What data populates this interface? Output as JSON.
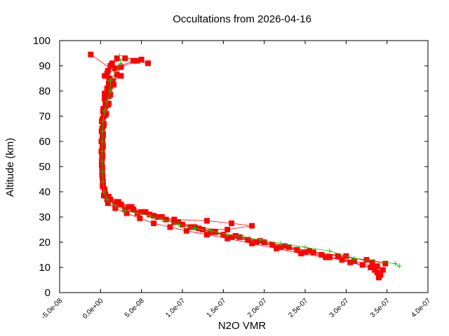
{
  "chart_data": {
    "type": "scatter",
    "title": "Occultations from 2026-04-16",
    "xlabel": "N2O VMR",
    "ylabel": "Altitude (km)",
    "xlim": [
      -5e-08,
      4e-07
    ],
    "ylim": [
      0,
      100
    ],
    "x_ticks": [
      -5e-08,
      0,
      5e-08,
      1e-07,
      1.5e-07,
      2e-07,
      2.5e-07,
      3e-07,
      3.5e-07,
      4e-07
    ],
    "x_tick_labels": [
      "-5.0e-08",
      "0.0e+00",
      "5.0e-08",
      "1.0e-07",
      "1.5e-07",
      "2.0e-07",
      "2.5e-07",
      "3.0e-07",
      "3.5e-07",
      "4.0e-07"
    ],
    "y_ticks": [
      0,
      10,
      20,
      30,
      40,
      50,
      60,
      70,
      80,
      90,
      100
    ],
    "y_tick_labels": [
      "0",
      "10",
      "20",
      "30",
      "40",
      "50",
      "60",
      "70",
      "80",
      "90",
      "100"
    ],
    "grid": false,
    "legend": "none",
    "colors": {
      "observed": "#ff0000",
      "mean": "#00cc00"
    },
    "series": [
      {
        "marker": "square",
        "color": "#ff0000",
        "profiles": [
          {
            "x": [
              3.4e-07,
              3.38e-07,
              3.3e-07,
              3.05e-07,
              2.8e-07,
              2.5e-07,
              2.2e-07,
              1.9e-07,
              1.6e-07,
              1.35e-07,
              1.1e-07,
              9e-08,
              7e-08,
              5e-08,
              3.5e-08,
              2e-08,
              1e-08,
              5e-09,
              3e-09,
              2e-09,
              1.5e-09,
              1e-09,
              1e-09,
              1.2e-09,
              1.5e-09,
              3e-09,
              6e-09,
              1e-08,
              1.5e-08,
              8e-09,
              1.2e-08,
              2e-08
            ],
            "y": [
              6,
              8,
              10,
              12,
              14,
              16,
              18,
              20,
              22,
              24,
              26,
              28,
              30,
              32,
              34,
              36,
              38,
              40,
              44,
              48,
              52,
              56,
              60,
              64,
              68,
              72,
              76,
              80,
              84,
              87,
              90,
              93
            ]
          },
          {
            "x": [
              3.42e-07,
              3.35e-07,
              3.2e-07,
              2.95e-07,
              2.7e-07,
              2.4e-07,
              2.1e-07,
              1.8e-07,
              1.5e-07,
              1.25e-07,
              1e-07,
              8e-08,
              6e-08,
              4e-08,
              2.5e-08,
              1.2e-08,
              6e-09,
              3e-09,
              2.5e-09,
              2e-09,
              2.5e-09,
              3e-09,
              2.5e-09,
              3e-09,
              4e-09,
              6e-09,
              1e-08,
              1.2e-08,
              5e-09,
              1.8e-08,
              4e-08,
              5.8e-08
            ],
            "y": [
              7,
              9,
              11,
              13,
              15,
              17,
              19,
              21,
              23,
              25,
              27,
              29,
              31,
              33,
              35,
              37,
              39,
              42,
              46,
              50,
              54,
              58,
              62,
              66,
              70,
              74,
              78,
              82,
              86,
              89,
              92,
              91
            ]
          },
          {
            "x": [
              3.45e-07,
              3.38e-07,
              3.32e-07,
              3e-07,
              2.6e-07,
              2.3e-07,
              2e-07,
              1.7e-07,
              1.4e-07,
              1.15e-07,
              9.5e-08,
              7.5e-08,
              5.5e-08,
              3.8e-08,
              2.2e-08,
              1e-08,
              5e-09,
              2.5e-09,
              2e-09,
              1.8e-09,
              2e-09,
              2.2e-09,
              2e-09,
              2.5e-09,
              3.5e-09,
              5e-09,
              8e-09,
              1.1e-08,
              9e-09,
              1.4e-08,
              3e-08,
              5e-08
            ],
            "y": [
              9,
              10.5,
              12,
              14.5,
              16,
              18,
              20,
              22,
              24,
              26,
              28,
              30,
              32,
              34,
              36,
              38,
              41,
              45,
              49,
              53,
              57,
              61,
              65,
              69,
              73,
              77,
              81,
              85,
              88,
              91,
              93,
              92.5
            ]
          },
          {
            "x": [
              3.48e-07,
              3.25e-07,
              2.9e-07,
              2.55e-07,
              2.25e-07,
              1.95e-07,
              1.65e-07,
              1.4e-07,
              1.2e-07,
              1.55e-07,
              1.85e-07,
              1.6e-07,
              1.3e-07,
              9e-08,
              6.5e-08,
              4.5e-08,
              3e-08,
              1.8e-08,
              8e-09,
              3e-09,
              2e-09,
              1.5e-09,
              2e-09,
              2.5e-09,
              3e-09,
              4e-09,
              7e-09,
              1e-08,
              5e-09,
              1e-08,
              2.5e-08,
              -1.2e-08
            ],
            "y": [
              11.5,
              13,
              14.5,
              16.5,
              18.5,
              20.5,
              22.5,
              24,
              25.5,
              25,
              26.5,
              27.5,
              28.5,
              29,
              30.5,
              31.5,
              33,
              35,
              37,
              43,
              47,
              51,
              55,
              59,
              63,
              67,
              71,
              75,
              79,
              83,
              86,
              94.5
            ]
          },
          {
            "x": [
              3.35e-07,
              3.1e-07,
              2.75e-07,
              2.45e-07,
              2.15e-07,
              1.85e-07,
              1.55e-07,
              1.3e-07,
              1.05e-07,
              8.5e-08,
              6.5e-08,
              4.8e-08,
              3.2e-08,
              1.8e-08,
              9e-09,
              4e-09,
              2.5e-09,
              2e-09,
              1.5e-09,
              2e-09,
              2.5e-09,
              3e-09,
              4e-09,
              6e-09,
              9e-09,
              1.2e-08,
              1.6e-08,
              2e-08,
              2.5e-08,
              4.5e-08
            ],
            "y": [
              10,
              12.5,
              14,
              15.5,
              17.5,
              19.5,
              21.5,
              23,
              24.5,
              26,
              27.5,
              29.5,
              31.5,
              33.5,
              35.5,
              38.5,
              42.5,
              46.5,
              50.5,
              54.5,
              58.5,
              62.5,
              66.5,
              70.5,
              74.5,
              78.5,
              82.5,
              86.5,
              89.5,
              92
            ]
          }
        ]
      },
      {
        "marker": "plus",
        "color": "#00cc00",
        "x": [
          3.65e-07,
          3.6e-07,
          3.1e-07,
          2.8e-07,
          2.5e-07,
          2.2e-07,
          1.95e-07,
          1.75e-07,
          1.55e-07,
          1.35e-07,
          1.15e-07,
          9.5e-08,
          7.5e-08,
          6e-08,
          4.5e-08,
          3e-08,
          1.8e-08,
          8e-09,
          4e-09,
          3e-09,
          2.5e-09,
          2e-09,
          2e-09,
          2.2e-09,
          2.5e-09,
          3e-09,
          5e-09,
          8e-09,
          1.2e-08,
          1.2e-08,
          2.5e-08,
          2.3e-08
        ],
        "y": [
          10.5,
          11.5,
          13.5,
          16.5,
          18,
          19.5,
          21,
          22,
          23,
          24.5,
          25.5,
          27,
          29,
          30.5,
          31.5,
          32.5,
          34.5,
          37,
          40,
          44,
          48,
          52,
          56,
          60,
          64,
          68,
          72,
          76,
          80,
          84,
          91,
          94
        ]
      }
    ]
  }
}
